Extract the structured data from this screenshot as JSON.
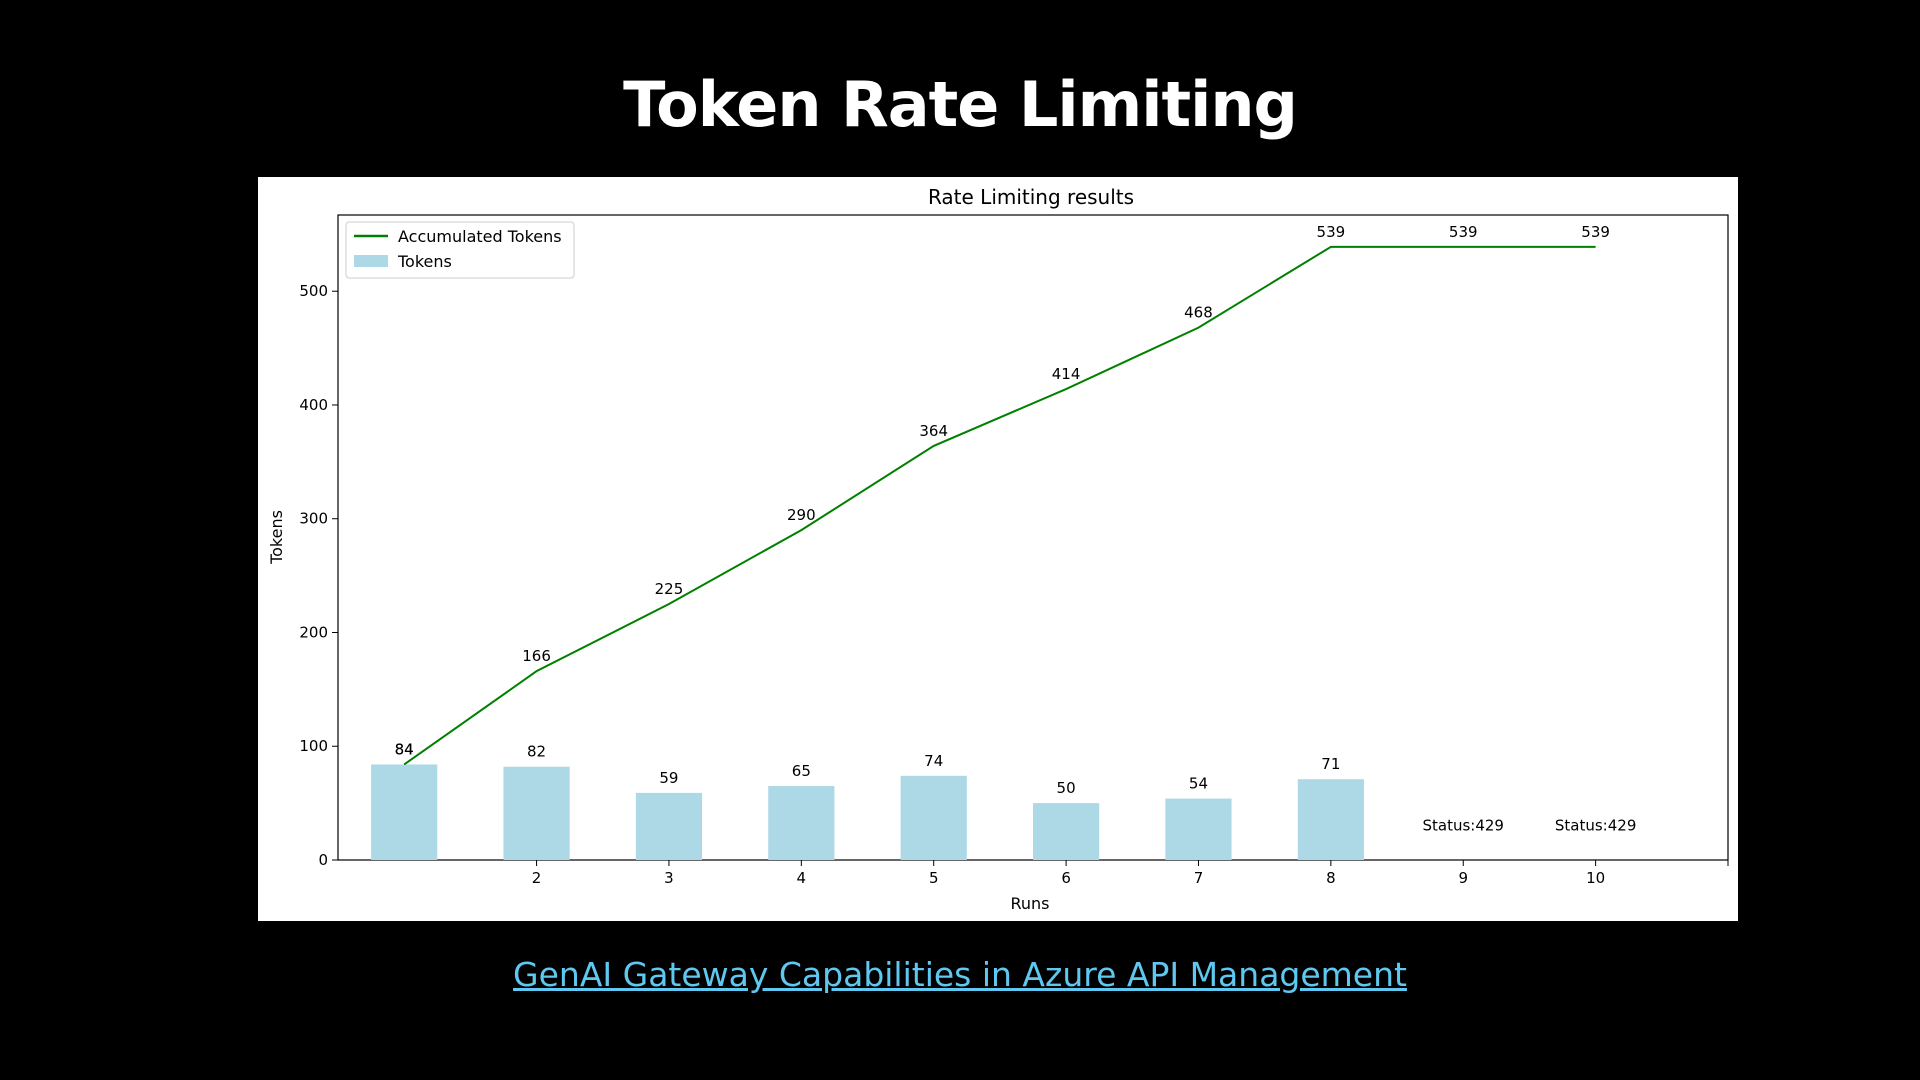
{
  "slide": {
    "title": "Token Rate Limiting",
    "link_text": "GenAI Gateway Capabilities in Azure API Management"
  },
  "colors": {
    "background": "#000000",
    "link": "#5ec8f0",
    "bar": "#add8e6",
    "line": "#008000"
  },
  "chart_data": {
    "type": "bar",
    "title": "Rate Limiting results",
    "xlabel": "Runs",
    "ylabel": "Tokens",
    "x": [
      1,
      2,
      3,
      4,
      5,
      6,
      7,
      8,
      9,
      10
    ],
    "x_tick_labels": [
      "",
      "2",
      "3",
      "4",
      "5",
      "6",
      "7",
      "8",
      "9",
      "10"
    ],
    "ylim": [
      0,
      567
    ],
    "y_ticks": [
      0,
      100,
      200,
      300,
      400,
      500
    ],
    "legend_position": "top-left",
    "series": [
      {
        "name": "Accumulated Tokens",
        "type": "line",
        "color": "#008000",
        "values": [
          84,
          166,
          225,
          290,
          364,
          414,
          468,
          539,
          539,
          539
        ]
      },
      {
        "name": "Tokens",
        "type": "bar",
        "color": "#add8e6",
        "values": [
          84,
          82,
          59,
          65,
          74,
          50,
          54,
          71,
          null,
          null
        ]
      }
    ],
    "bar_labels": [
      "84",
      "82",
      "59",
      "65",
      "74",
      "50",
      "54",
      "71",
      "Status:429",
      "Status:429"
    ],
    "line_labels": [
      "84",
      "166",
      "225",
      "290",
      "364",
      "414",
      "468",
      "539",
      "539",
      "539"
    ]
  }
}
